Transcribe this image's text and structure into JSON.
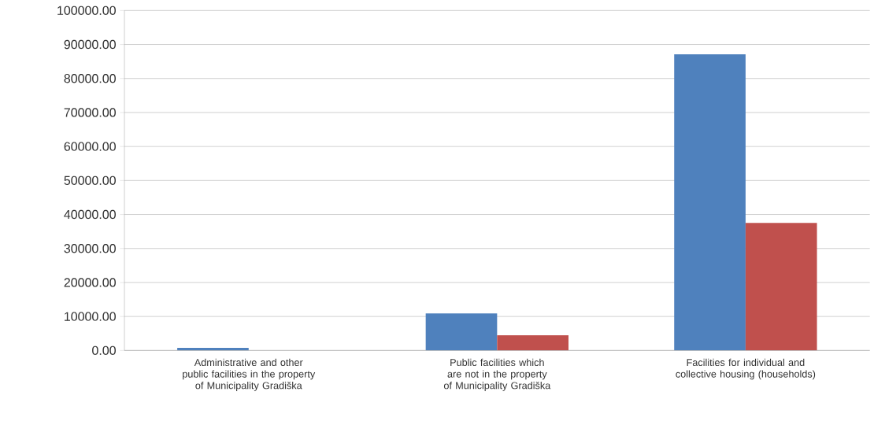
{
  "chart_data": {
    "type": "bar",
    "categories": [
      "Administrative and other public  facilities in the property of Municipality Gradiška",
      "Public  facilities which are not in the property of Municipality Gradiška",
      "Facilities for individual and collective housing (households)"
    ],
    "series": [
      {
        "color": "#4f81bd",
        "values": [
          750,
          10900,
          87100
        ]
      },
      {
        "color": "#c0504d",
        "values": [
          0,
          4500,
          37500
        ]
      }
    ],
    "ylim": [
      0,
      100000
    ],
    "yticks": [
      {
        "value": 0,
        "label": "0.00"
      },
      {
        "value": 10000,
        "label": "10000.00"
      },
      {
        "value": 20000,
        "label": "20000.00"
      },
      {
        "value": 30000,
        "label": "30000.00"
      },
      {
        "value": 40000,
        "label": "40000.00"
      },
      {
        "value": 50000,
        "label": "50000.00"
      },
      {
        "value": 60000,
        "label": "60000.00"
      },
      {
        "value": 70000,
        "label": "70000.00"
      },
      {
        "value": 80000,
        "label": "80000.00"
      },
      {
        "value": 90000,
        "label": "90000.00"
      },
      {
        "value": 100000,
        "label": "100000.00"
      }
    ],
    "grid": "y"
  }
}
